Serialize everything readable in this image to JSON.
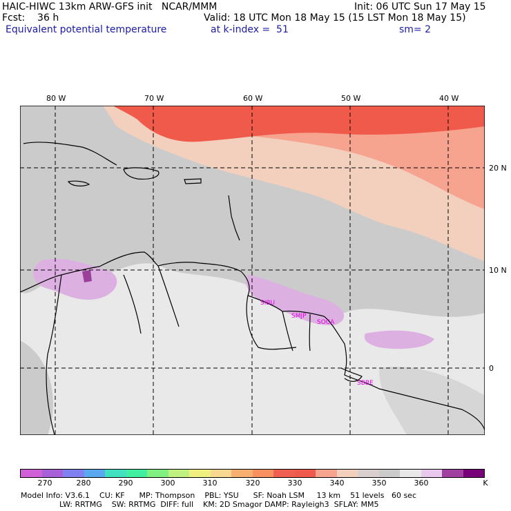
{
  "header": {
    "line1_left": "HAIC-HIWC 13km ARW-GFS init   NCAR/MMM",
    "line1_right": "Init: 06 UTC Sun 17 May 15",
    "line2_left": "Fcst:    36 h",
    "line2_right": "Valid: 18 UTC Mon 18 May 15 (15 LST Mon 18 May 15)",
    "line3_field": "Equivalent potential temperature",
    "line3_level": "at k-index =  51",
    "line3_smooth": "sm= 2"
  },
  "map": {
    "lon_labels": [
      "80 W",
      "70 W",
      "60 W",
      "50 W",
      "40 W"
    ],
    "lat_labels": [
      "20 N",
      "10 N",
      "0"
    ],
    "stations": [
      "SIBU",
      "SMJP",
      "SOCA",
      "SBBE"
    ],
    "colors": {
      "warm_band": "#f05a4a",
      "mid_band": "#f6a48f",
      "pale_band": "#f2d0bd",
      "gray_field": "#cbcbcb",
      "light_field": "#e9e9e9",
      "purple_patch": "#dcb1e2",
      "station_label": "#e000e0"
    }
  },
  "colorbar": {
    "colors": [
      "#d060d8",
      "#a860d8",
      "#8080f0",
      "#5aa8f0",
      "#40e0c0",
      "#40f0a0",
      "#80f080",
      "#c0f080",
      "#f0f080",
      "#f8d890",
      "#f8b070",
      "#f89060",
      "#f06050",
      "#f05a4a",
      "#f6a48f",
      "#f2d0bd",
      "#d9cfcf",
      "#cbcbcb",
      "#e9e9e9",
      "#e8c8ec",
      "#a040a0",
      "#780078"
    ],
    "labels": [
      "270",
      "280",
      "290",
      "300",
      "310",
      "320",
      "330",
      "340",
      "350",
      "360"
    ],
    "unit": "K"
  },
  "footer": {
    "line1": "Model Info: V3.6.1    CU: KF      MP: Thompson    PBL: YSU      SF: Noah LSM     13 km    51 levels   60 sec",
    "line2": "                LW: RRTMG    SW: RRTMG  DIFF: full    KM: 2D Smagor DAMP: Rayleigh3  SFLAY: MM5"
  }
}
